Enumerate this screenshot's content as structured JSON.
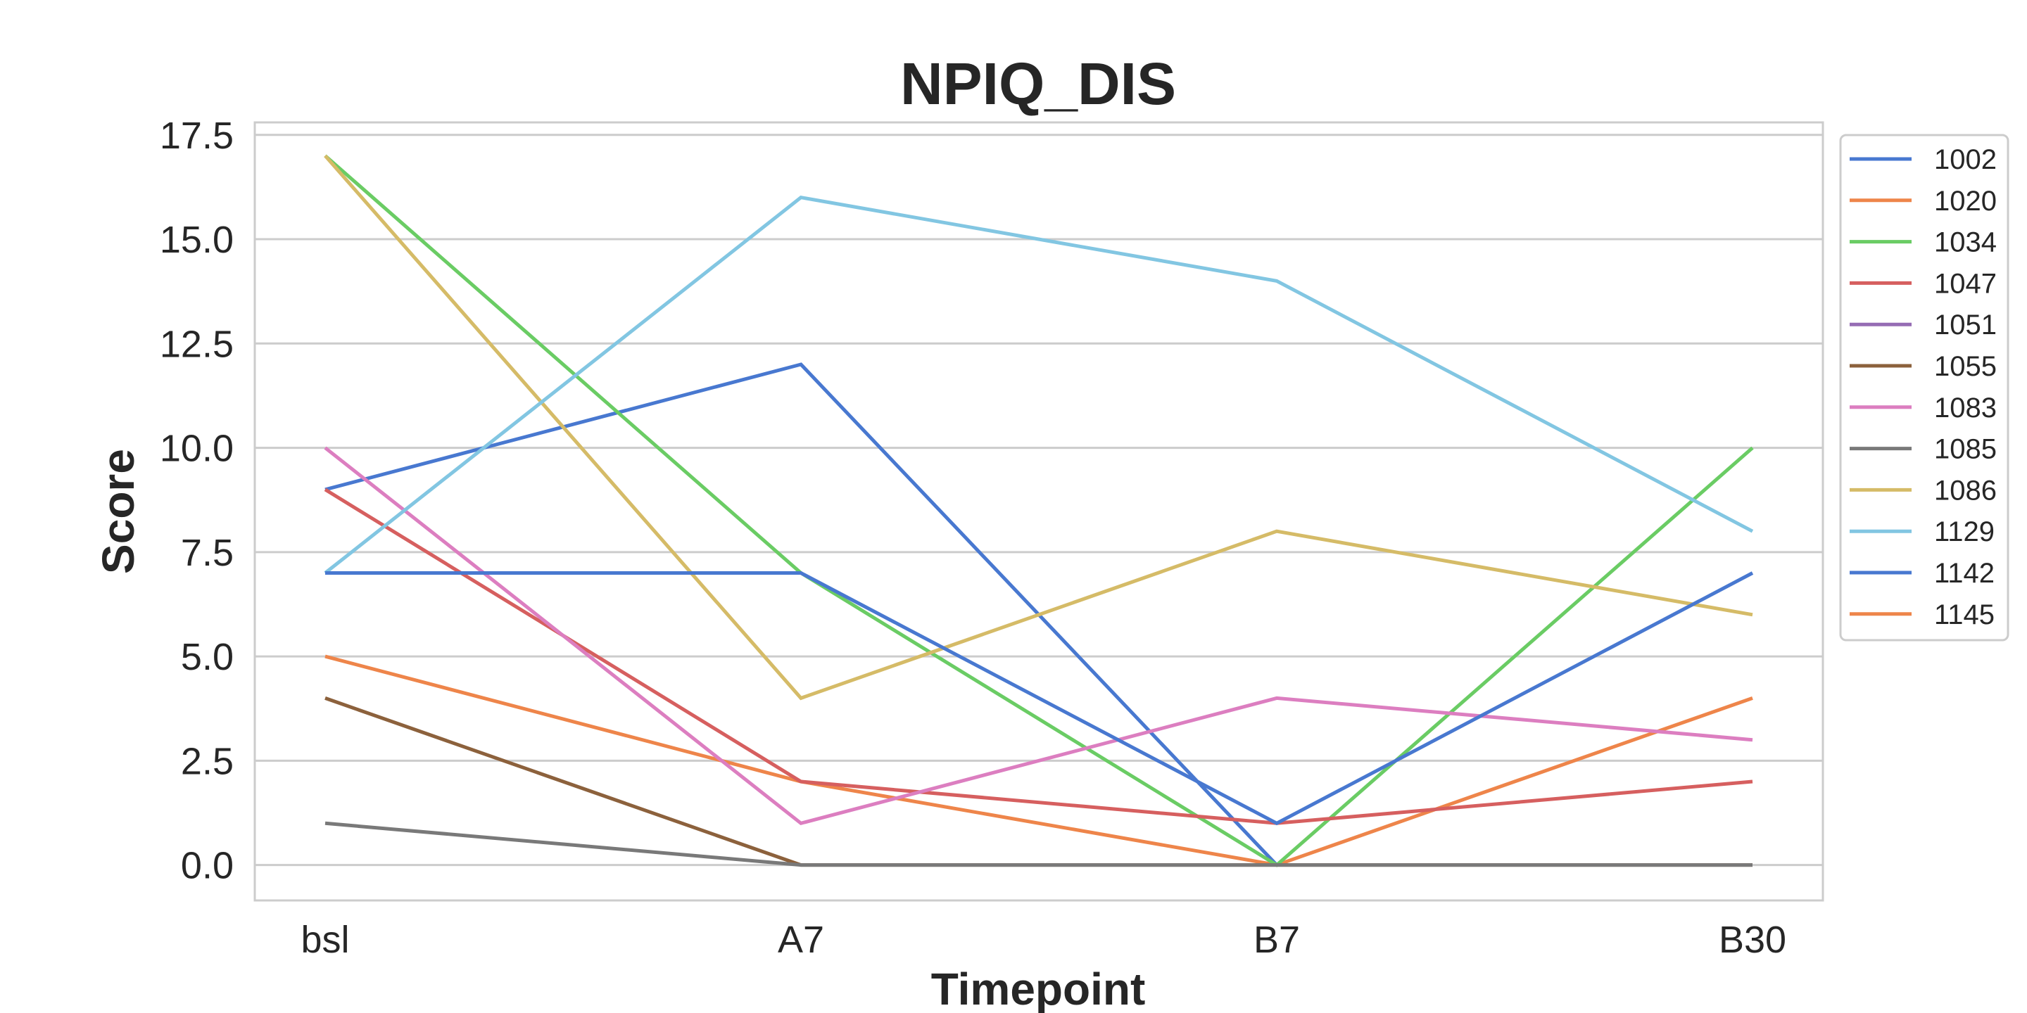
{
  "chart_data": {
    "type": "line",
    "title": "NPIQ_DIS",
    "xlabel": "Timepoint",
    "ylabel": "Score",
    "categories": [
      "bsl",
      "A7",
      "B7",
      "B30"
    ],
    "ylim": [
      -0.85,
      17.8
    ],
    "yticks": [
      "0.0",
      "2.5",
      "5.0",
      "7.5",
      "10.0",
      "12.5",
      "15.0",
      "17.5"
    ],
    "ytick_values": [
      0,
      2.5,
      5,
      7.5,
      10,
      12.5,
      15,
      17.5
    ],
    "grid": "horizontal",
    "legend_position": "right-outside-top",
    "series": [
      {
        "name": "1002",
        "color": "#4878d0",
        "values": [
          9,
          12,
          0,
          null
        ]
      },
      {
        "name": "1020",
        "color": "#ee854a",
        "values": [
          5,
          2,
          0,
          4
        ]
      },
      {
        "name": "1034",
        "color": "#6acc64",
        "values": [
          17,
          7,
          0,
          10
        ]
      },
      {
        "name": "1047",
        "color": "#d65f5f",
        "values": [
          9,
          2,
          1,
          2
        ]
      },
      {
        "name": "1051",
        "color": "#956cb4",
        "values": [
          null,
          null,
          null,
          null
        ]
      },
      {
        "name": "1055",
        "color": "#8c613c",
        "values": [
          4,
          0,
          0,
          0
        ]
      },
      {
        "name": "1083",
        "color": "#dc7ec0",
        "values": [
          10,
          1,
          4,
          3
        ]
      },
      {
        "name": "1085",
        "color": "#797979",
        "values": [
          1,
          0,
          0,
          0
        ]
      },
      {
        "name": "1086",
        "color": "#d5bb67",
        "values": [
          17,
          4,
          8,
          6
        ]
      },
      {
        "name": "1129",
        "color": "#82c6e2",
        "values": [
          7,
          16,
          14,
          8
        ]
      },
      {
        "name": "1142",
        "color": "#4878d0",
        "values": [
          7,
          7,
          1,
          7
        ]
      },
      {
        "name": "1145",
        "color": "#ee854a",
        "values": [
          null,
          null,
          null,
          null
        ]
      }
    ]
  }
}
